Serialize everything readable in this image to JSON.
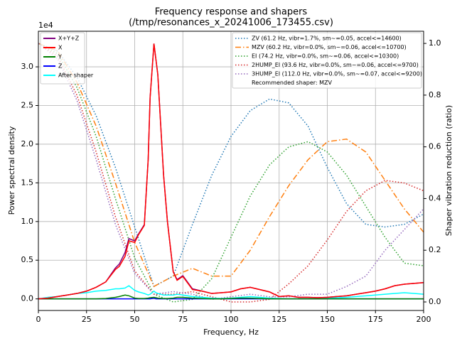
{
  "chart_data": {
    "type": "line",
    "title": "Frequency response and shapers",
    "subtitle": "(/tmp/resonances_x_20241006_173455.csv)",
    "xlabel": "Frequency, Hz",
    "ylabel": "Power spectral density",
    "y2label": "Shaper vibration reduction (ratio)",
    "y_offset_label": "1e4",
    "xlim": [
      0,
      200
    ],
    "xticks": [
      0,
      25,
      50,
      75,
      100,
      125,
      150,
      175,
      200
    ],
    "ylim": [
      -1500,
      34600
    ],
    "yticks": [
      {
        "value": 0,
        "label": "0.0"
      },
      {
        "value": 5000,
        "label": "0.5"
      },
      {
        "value": 10000,
        "label": "1.0"
      },
      {
        "value": 15000,
        "label": "1.5"
      },
      {
        "value": 20000,
        "label": "2.0"
      },
      {
        "value": 25000,
        "label": "2.5"
      },
      {
        "value": 30000,
        "label": "3.0"
      }
    ],
    "y2lim": [
      -0.033,
      1.047
    ],
    "y2ticks": [
      {
        "value": 0,
        "label": "0.0"
      },
      0.2,
      0.4,
      0.6,
      0.8,
      {
        "value": 1,
        "label": "1.0"
      }
    ],
    "grid": true,
    "x": [
      0,
      5,
      10,
      15,
      20,
      25,
      30,
      35,
      40,
      42,
      45,
      47,
      50,
      52,
      55,
      57,
      58,
      60,
      61,
      62,
      65,
      67,
      70,
      72,
      75,
      80,
      85,
      90,
      95,
      100,
      105,
      110,
      115,
      120,
      125,
      130,
      135,
      140,
      145,
      150,
      155,
      160,
      165,
      170,
      175,
      180,
      185,
      190,
      195,
      200
    ],
    "series": [
      {
        "name": "X+Y+Z",
        "color": "#800080",
        "values": [
          0,
          100,
          300,
          500,
          700,
          1000,
          1500,
          2200,
          4000,
          4500,
          6000,
          7800,
          7500,
          8400,
          9600,
          18000,
          26000,
          33000,
          31000,
          29000,
          16000,
          10000,
          3500,
          2500,
          3000,
          1300,
          1000,
          700,
          800,
          900,
          1300,
          1500,
          1200,
          900,
          300,
          400,
          200,
          200,
          150,
          200,
          300,
          400,
          600,
          800,
          1000,
          1300,
          1700,
          1900,
          2000,
          2100
        ]
      },
      {
        "name": "X",
        "color": "#ff0000",
        "values": [
          0,
          100,
          300,
          500,
          700,
          1000,
          1500,
          2200,
          3800,
          4200,
          5500,
          7500,
          7300,
          8300,
          9500,
          18000,
          26000,
          33000,
          31000,
          29000,
          16000,
          10000,
          3500,
          2400,
          2900,
          1200,
          1000,
          700,
          800,
          900,
          1300,
          1500,
          1200,
          900,
          300,
          400,
          200,
          200,
          150,
          200,
          300,
          400,
          600,
          800,
          1000,
          1300,
          1700,
          1900,
          2000,
          2100
        ]
      },
      {
        "name": "Y",
        "color": "#008000",
        "values": [
          0,
          0,
          0,
          0,
          0,
          0,
          0,
          50,
          200,
          300,
          500,
          400,
          100,
          50,
          50,
          100,
          150,
          200,
          150,
          100,
          50,
          50,
          100,
          200,
          200,
          100,
          50,
          0,
          0,
          50,
          100,
          100,
          50,
          0,
          0,
          0,
          0,
          0,
          0,
          0,
          0,
          0,
          0,
          0,
          0,
          0,
          0,
          0,
          0,
          0
        ]
      },
      {
        "name": "Z",
        "color": "#0000ff",
        "values": [
          0,
          0,
          0,
          0,
          0,
          0,
          0,
          0,
          0,
          0,
          0,
          0,
          0,
          0,
          0,
          0,
          0,
          100,
          0,
          0,
          0,
          0,
          0,
          0,
          0,
          0,
          0,
          0,
          0,
          0,
          0,
          0,
          0,
          0,
          0,
          0,
          0,
          0,
          0,
          0,
          0,
          0,
          0,
          0,
          0,
          0,
          0,
          0,
          0,
          0
        ]
      },
      {
        "name": "After shaper",
        "color": "#00ffff",
        "values": [
          0,
          200,
          300,
          500,
          700,
          800,
          1000,
          1100,
          1300,
          1300,
          1400,
          1700,
          1100,
          900,
          700,
          500,
          600,
          1000,
          800,
          700,
          500,
          500,
          500,
          600,
          500,
          300,
          200,
          100,
          50,
          100,
          200,
          300,
          200,
          100,
          50,
          0,
          0,
          0,
          50,
          100,
          150,
          200,
          300,
          400,
          500,
          600,
          700,
          800,
          700,
          600
        ]
      }
    ],
    "shapers": [
      {
        "name": "ZV (61.2 Hz, vibr=1.7%, sm~=0.05, accel<=14600)",
        "color": "#1f77b4",
        "style": "dotted",
        "axis": "y2",
        "x": [
          0,
          10,
          20,
          30,
          40,
          50,
          60,
          70,
          80,
          90,
          100,
          110,
          120,
          130,
          140,
          150,
          160,
          170,
          180,
          190,
          200
        ],
        "values": [
          1.0,
          0.97,
          0.87,
          0.72,
          0.52,
          0.29,
          0.06,
          0.1,
          0.3,
          0.49,
          0.64,
          0.74,
          0.785,
          0.77,
          0.68,
          0.52,
          0.38,
          0.3,
          0.29,
          0.3,
          0.34
        ]
      },
      {
        "name": "MZV (60.2 Hz, vibr=0.0%, sm~=0.06, accel<=10700)",
        "color": "#ff7f0e",
        "style": "dashdot",
        "axis": "y2",
        "x": [
          0,
          10,
          20,
          30,
          40,
          50,
          60,
          70,
          80,
          90,
          100,
          110,
          120,
          130,
          140,
          150,
          160,
          170,
          180,
          190,
          200
        ],
        "values": [
          1.0,
          0.97,
          0.85,
          0.68,
          0.46,
          0.23,
          0.06,
          0.1,
          0.13,
          0.1,
          0.1,
          0.2,
          0.33,
          0.45,
          0.55,
          0.62,
          0.63,
          0.58,
          0.47,
          0.36,
          0.27
        ]
      },
      {
        "name": "EI (74.2 Hz, vibr=0.0%, sm~=0.06, accel<=10300)",
        "color": "#2ca02c",
        "style": "dotted",
        "axis": "y2",
        "x": [
          0,
          10,
          20,
          30,
          40,
          50,
          60,
          70,
          80,
          90,
          100,
          110,
          120,
          130,
          140,
          150,
          160,
          170,
          180,
          190,
          200
        ],
        "values": [
          1.0,
          0.96,
          0.83,
          0.64,
          0.4,
          0.17,
          0.03,
          0.0,
          0.01,
          0.09,
          0.25,
          0.41,
          0.53,
          0.6,
          0.62,
          0.58,
          0.49,
          0.37,
          0.25,
          0.15,
          0.14
        ]
      },
      {
        "name": "2HUMP_EI (93.6 Hz, vibr=0.0%, sm~=0.06, accel<=9700)",
        "color": "#d62728",
        "style": "dotted",
        "axis": "y2",
        "x": [
          0,
          10,
          20,
          30,
          40,
          50,
          60,
          70,
          80,
          90,
          100,
          110,
          120,
          130,
          140,
          150,
          160,
          170,
          180,
          190,
          200
        ],
        "values": [
          1.0,
          0.95,
          0.8,
          0.58,
          0.33,
          0.12,
          0.03,
          0.03,
          0.04,
          0.02,
          0.0,
          0.0,
          0.01,
          0.07,
          0.14,
          0.24,
          0.35,
          0.43,
          0.47,
          0.46,
          0.43
        ]
      },
      {
        "name": "3HUMP_EI (112.0 Hz, vibr=0.0%, sm~=0.07, accel<=9200)",
        "color": "#9467bd",
        "style": "dotted",
        "axis": "y2",
        "x": [
          0,
          10,
          20,
          30,
          40,
          50,
          60,
          70,
          80,
          90,
          100,
          110,
          120,
          130,
          140,
          150,
          160,
          170,
          180,
          190,
          200
        ],
        "values": [
          1.0,
          0.94,
          0.78,
          0.55,
          0.3,
          0.11,
          0.03,
          0.04,
          0.03,
          0.01,
          0.02,
          0.03,
          0.02,
          0.02,
          0.03,
          0.03,
          0.06,
          0.1,
          0.2,
          0.28,
          0.36
        ]
      }
    ],
    "recommended": "Recommended shaper: MZV"
  }
}
